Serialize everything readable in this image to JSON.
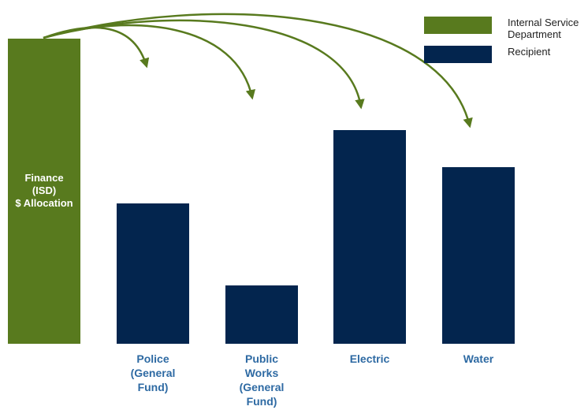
{
  "colors": {
    "source": "#587a1e",
    "recipient": "#03254e",
    "arrow": "#587a1e",
    "category_label": "#2e6aa3"
  },
  "legend": {
    "source_label": "Internal Service\nDepartment",
    "recipient_label": "Recipient"
  },
  "source": {
    "label": "Finance\n(ISD)\n$ Allocation",
    "value": 100
  },
  "chart_data": {
    "type": "bar",
    "title": "",
    "xlabel": "",
    "ylabel": "",
    "ylim": [
      0,
      100
    ],
    "categories": [
      "Police\n(General\nFund)",
      "Public\nWorks\n(General\nFund)",
      "Electric",
      "Water"
    ],
    "values": [
      46,
      19,
      70,
      58
    ],
    "source_value": 100,
    "arrows": "Finance (ISD) $ Allocation → each recipient",
    "grid": false,
    "legend_position": "top-right"
  }
}
